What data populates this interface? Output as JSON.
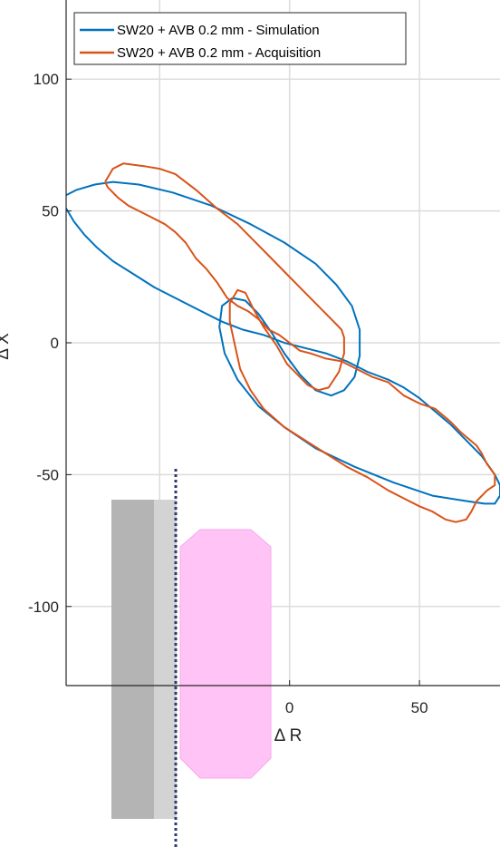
{
  "chart_data": {
    "type": "line",
    "xlabel": "Δ R",
    "ylabel": "Δ X",
    "xlim": [
      -86,
      81
    ],
    "ylim": [
      -130,
      130
    ],
    "xticks": [
      0,
      50
    ],
    "xtick_labels": [
      "0",
      "50"
    ],
    "yticks": [
      100,
      50,
      0,
      -50,
      -100
    ],
    "ytick_labels": [
      "100",
      "50",
      "0",
      "-50",
      "-100"
    ],
    "grid": true,
    "legend": {
      "placement": "top-left",
      "entries": [
        {
          "label": "SW20 + AVB 0.2 mm - Simulation",
          "color": "#0072BD"
        },
        {
          "label": "SW20 + AVB 0.2 mm - Acquisition",
          "color": "#D95319"
        }
      ]
    },
    "series": [
      {
        "name": "SW20 + AVB 0.2 mm - Simulation",
        "color": "#0072BD",
        "points": [
          [
            -86,
            56
          ],
          [
            -82,
            58
          ],
          [
            -75,
            60
          ],
          [
            -68,
            61
          ],
          [
            -58,
            60
          ],
          [
            -45,
            57
          ],
          [
            -30,
            52
          ],
          [
            -15,
            45
          ],
          [
            -2,
            38
          ],
          [
            10,
            30
          ],
          [
            18,
            22
          ],
          [
            24,
            14
          ],
          [
            27,
            5
          ],
          [
            27,
            -5
          ],
          [
            25,
            -13
          ],
          [
            21,
            -18
          ],
          [
            16,
            -20
          ],
          [
            10,
            -18
          ],
          [
            4,
            -12
          ],
          [
            -2,
            -4
          ],
          [
            -7,
            4
          ],
          [
            -12,
            11
          ],
          [
            -17,
            16
          ],
          [
            -22,
            17
          ],
          [
            -26,
            14
          ],
          [
            -27,
            6
          ],
          [
            -25,
            -4
          ],
          [
            -20,
            -14
          ],
          [
            -12,
            -24
          ],
          [
            -2,
            -32
          ],
          [
            10,
            -40
          ],
          [
            25,
            -47
          ],
          [
            40,
            -53
          ],
          [
            55,
            -58
          ],
          [
            68,
            -60
          ],
          [
            75,
            -61
          ],
          [
            79,
            -61
          ],
          [
            81,
            -58
          ],
          [
            81,
            -54
          ],
          [
            79,
            -50
          ],
          [
            74,
            -43
          ],
          [
            68,
            -37
          ],
          [
            62,
            -31
          ],
          [
            56,
            -26
          ],
          [
            50,
            -21
          ],
          [
            44,
            -17
          ],
          [
            38,
            -14
          ],
          [
            30,
            -11
          ],
          [
            22,
            -7
          ],
          [
            14,
            -4
          ],
          [
            6,
            -2
          ],
          [
            -2,
            0
          ],
          [
            -10,
            3
          ],
          [
            -18,
            5
          ],
          [
            -26,
            8
          ],
          [
            -34,
            12
          ],
          [
            -42,
            16
          ],
          [
            -52,
            21
          ],
          [
            -60,
            26
          ],
          [
            -68,
            31
          ],
          [
            -74,
            36
          ],
          [
            -79,
            41
          ],
          [
            -83,
            46
          ],
          [
            -86,
            51
          ]
        ]
      },
      {
        "name": "SW20 + AVB 0.2 mm - Acquisition",
        "color": "#D95319",
        "points": [
          [
            -71,
            61
          ],
          [
            -68,
            66
          ],
          [
            -64,
            68
          ],
          [
            -56,
            67
          ],
          [
            -50,
            66
          ],
          [
            -44,
            64
          ],
          [
            -36,
            58
          ],
          [
            -28,
            51
          ],
          [
            -20,
            45
          ],
          [
            -14,
            39
          ],
          [
            -8,
            33
          ],
          [
            -2,
            27
          ],
          [
            4,
            21
          ],
          [
            10,
            15
          ],
          [
            16,
            9
          ],
          [
            20,
            5
          ],
          [
            21,
            2
          ],
          [
            21,
            -4
          ],
          [
            19,
            -11
          ],
          [
            15,
            -17
          ],
          [
            11,
            -18
          ],
          [
            7,
            -16
          ],
          [
            3,
            -12
          ],
          [
            -1,
            -8
          ],
          [
            -5,
            -1
          ],
          [
            -10,
            6
          ],
          [
            -14,
            13
          ],
          [
            -17,
            19
          ],
          [
            -20,
            20
          ],
          [
            -23,
            15
          ],
          [
            -23,
            8
          ],
          [
            -21,
            -1
          ],
          [
            -19,
            -10
          ],
          [
            -15,
            -18
          ],
          [
            -10,
            -25
          ],
          [
            -2,
            -32
          ],
          [
            6,
            -37
          ],
          [
            14,
            -42
          ],
          [
            22,
            -47
          ],
          [
            30,
            -51
          ],
          [
            38,
            -56
          ],
          [
            44,
            -59
          ],
          [
            50,
            -62
          ],
          [
            55,
            -64
          ],
          [
            60,
            -67
          ],
          [
            64,
            -68
          ],
          [
            68,
            -67
          ],
          [
            70,
            -64
          ],
          [
            72,
            -60
          ],
          [
            76,
            -56
          ],
          [
            79,
            -54
          ],
          [
            79,
            -50
          ],
          [
            76,
            -46
          ],
          [
            74,
            -42
          ],
          [
            72,
            -39
          ],
          [
            66,
            -34
          ],
          [
            62,
            -30
          ],
          [
            56,
            -25
          ],
          [
            50,
            -23
          ],
          [
            44,
            -20
          ],
          [
            38,
            -15
          ],
          [
            32,
            -13
          ],
          [
            26,
            -10
          ],
          [
            20,
            -7
          ],
          [
            14,
            -6
          ],
          [
            8,
            -4
          ],
          [
            4,
            -3
          ],
          [
            0,
            0
          ],
          [
            -4,
            3
          ],
          [
            -8,
            5
          ],
          [
            -12,
            9
          ],
          [
            -16,
            12
          ],
          [
            -20,
            14
          ],
          [
            -24,
            17
          ],
          [
            -28,
            23
          ],
          [
            -32,
            28
          ],
          [
            -36,
            32
          ],
          [
            -40,
            38
          ],
          [
            -44,
            42
          ],
          [
            -48,
            45
          ],
          [
            -54,
            48
          ],
          [
            -58,
            50
          ],
          [
            -62,
            52
          ],
          [
            -66,
            55
          ],
          [
            -70,
            59
          ],
          [
            -71,
            61
          ]
        ]
      }
    ]
  }
}
